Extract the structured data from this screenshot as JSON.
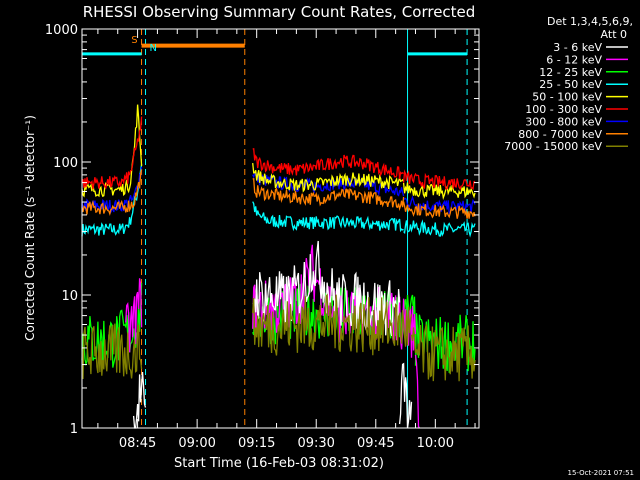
{
  "chart_data": {
    "type": "line",
    "title": "RHESSI Observing Summary Count Rates, Corrected",
    "xlabel": "Start Time (16-Feb-03 08:31:02)",
    "ylabel": "Corrected Count Rate (s⁻¹ detector⁻¹)",
    "y_scale": "log",
    "ylim": [
      1,
      1000
    ],
    "xlim_minutes": [
      "08:31",
      "10:11"
    ],
    "y_ticks": [
      "1",
      "10",
      "100",
      "1000"
    ],
    "x_ticks": [
      "08:45",
      "09:00",
      "09:15",
      "09:30",
      "09:45",
      "10:00"
    ],
    "detector_info": [
      "Det 1,3,4,5,6,9,",
      "Att 0"
    ],
    "footer_date": "15-Oct-2021 07:51",
    "markers": {
      "S_label": "S",
      "N_label": "N",
      "saa_bar": {
        "start": "08:46",
        "end": "09:12",
        "level": 750
      },
      "night_lines": [
        "08:47",
        "09:53",
        "10:08"
      ],
      "saa_lines": [
        "08:46",
        "09:12"
      ],
      "night_bar_levels": 650
    },
    "series": [
      {
        "name": "3 - 6 keV",
        "color": "#ffffff",
        "segments": [
          {
            "x": [
              "08:44",
              "08:45",
              "08:46",
              "08:47"
            ],
            "y": [
              1.0,
              1.5,
              2.0,
              1.0
            ]
          },
          {
            "x": [
              "09:14",
              "09:18",
              "09:22",
              "09:26",
              "09:28",
              "09:29",
              "09:31",
              "09:33",
              "09:36",
              "09:42",
              "09:48",
              "09:51"
            ],
            "y": [
              10,
              10,
              9,
              11,
              14,
              18,
              15,
              11,
              9,
              9,
              8,
              8
            ]
          },
          {
            "x": [
              "09:51",
              "09:52",
              "09:53",
              "09:54"
            ],
            "y": [
              1.0,
              2.5,
              1.3,
              1.0
            ]
          }
        ]
      },
      {
        "name": "6 - 12 keV",
        "color": "#ff00ff",
        "segments": [
          {
            "x": [
              "08:42",
              "08:44",
              "08:45",
              "08:46"
            ],
            "y": [
              5,
              6,
              8,
              9
            ]
          },
          {
            "x": [
              "09:14",
              "09:18",
              "09:22",
              "09:26",
              "09:28",
              "09:29",
              "09:31",
              "09:33",
              "09:36",
              "09:42",
              "09:48",
              "09:53",
              "09:55"
            ],
            "y": [
              8,
              8,
              8,
              10,
              13,
              15,
              12,
              9,
              7,
              7,
              7,
              6,
              5
            ]
          },
          {
            "x": [
              "09:55",
              "09:56"
            ],
            "y": [
              5,
              1.0
            ]
          }
        ]
      },
      {
        "name": "12 - 25 keV",
        "color": "#00ff00",
        "segments": [
          {
            "x": [
              "08:31",
              "08:36",
              "08:40",
              "08:44",
              "08:46"
            ],
            "y": [
              4.5,
              4.5,
              4.6,
              5.5,
              8.5
            ]
          },
          {
            "x": [
              "09:14",
              "09:20",
              "09:26",
              "09:32",
              "09:38",
              "09:44",
              "09:50",
              "09:55"
            ],
            "y": [
              7,
              7,
              7.5,
              7.5,
              7,
              7,
              7,
              6.5
            ]
          },
          {
            "x": [
              "09:55",
              "10:00",
              "10:05",
              "10:10"
            ],
            "y": [
              4.5,
              4.3,
              4.3,
              4.3
            ]
          }
        ]
      },
      {
        "name": "25 - 50 keV",
        "color": "#00ffff",
        "segments": [
          {
            "x": [
              "08:31",
              "08:36",
              "08:41",
              "08:43",
              "08:45",
              "08:46"
            ],
            "y": [
              31,
              31,
              31,
              35,
              60,
              100
            ]
          },
          {
            "x": [
              "09:14",
              "09:15",
              "09:18",
              "09:25",
              "09:35",
              "09:45",
              "09:52"
            ],
            "y": [
              50,
              40,
              36,
              35,
              35,
              34,
              34
            ]
          },
          {
            "x": [
              "09:52",
              "09:56",
              "10:02",
              "10:10"
            ],
            "y": [
              33,
              32,
              31,
              31
            ]
          }
        ]
      },
      {
        "name": "50 - 100 keV",
        "color": "#ffff00",
        "segments": [
          {
            "x": [
              "08:31",
              "08:36",
              "08:41",
              "08:43",
              "08:44",
              "08:45",
              "08:46"
            ],
            "y": [
              62,
              62,
              62,
              68,
              110,
              250,
              100
            ]
          },
          {
            "x": [
              "09:14",
              "09:15",
              "09:18",
              "09:25",
              "09:30",
              "09:38",
              "09:45",
              "09:52"
            ],
            "y": [
              95,
              80,
              72,
              67,
              68,
              75,
              72,
              68
            ]
          },
          {
            "x": [
              "09:52",
              "09:56",
              "10:02",
              "10:10"
            ],
            "y": [
              64,
              61,
              60,
              60
            ]
          }
        ]
      },
      {
        "name": "100 - 300 keV",
        "color": "#ff0000",
        "segments": [
          {
            "x": [
              "08:31",
              "08:36",
              "08:41",
              "08:43",
              "08:45",
              "08:46"
            ],
            "y": [
              70,
              70,
              70,
              78,
              140,
              200
            ]
          },
          {
            "x": [
              "09:14",
              "09:15",
              "09:20",
              "09:25",
              "09:30",
              "09:36",
              "09:42",
              "09:47",
              "09:52"
            ],
            "y": [
              120,
              100,
              90,
              87,
              92,
              102,
              98,
              88,
              80
            ]
          },
          {
            "x": [
              "09:52",
              "09:56",
              "10:02",
              "10:10"
            ],
            "y": [
              77,
              72,
              70,
              70
            ]
          }
        ]
      },
      {
        "name": "300 - 800 keV",
        "color": "#0000ff",
        "segments": [
          {
            "x": [
              "08:31",
              "08:36",
              "08:41",
              "08:44",
              "08:46"
            ],
            "y": [
              47,
              47,
              47,
              52,
              90
            ]
          },
          {
            "x": [
              "09:14",
              "09:15",
              "09:20",
              "09:25",
              "09:30",
              "09:36",
              "09:42",
              "09:47",
              "09:52"
            ],
            "y": [
              85,
              75,
              70,
              67,
              66,
              70,
              68,
              63,
              58
            ]
          },
          {
            "x": [
              "09:52",
              "09:56",
              "10:02",
              "10:10"
            ],
            "y": [
              52,
              48,
              46,
              46
            ]
          }
        ]
      },
      {
        "name": "800 - 7000 keV",
        "color": "#ff8000",
        "segments": [
          {
            "x": [
              "08:31",
              "08:36",
              "08:41",
              "08:44",
              "08:46"
            ],
            "y": [
              45,
              45,
              45,
              49,
              80
            ]
          },
          {
            "x": [
              "09:14",
              "09:15",
              "09:20",
              "09:25",
              "09:30",
              "09:36",
              "09:42",
              "09:47",
              "09:52"
            ],
            "y": [
              70,
              60,
              56,
              54,
              53,
              57,
              55,
              52,
              49
            ]
          },
          {
            "x": [
              "09:52",
              "09:56",
              "10:02",
              "10:10"
            ],
            "y": [
              46,
              44,
              42,
              42
            ]
          }
        ]
      },
      {
        "name": "7000 - 15000 keV",
        "color": "#808000",
        "segments": [
          {
            "x": [
              "08:31",
              "08:36",
              "08:41",
              "08:45",
              "08:46"
            ],
            "y": [
              3.7,
              3.7,
              3.7,
              3.8,
              4.5
            ]
          },
          {
            "x": [
              "09:14",
              "09:20",
              "09:26",
              "09:32",
              "09:38",
              "09:44",
              "09:50",
              "09:54"
            ],
            "y": [
              5.8,
              5.8,
              6,
              6.2,
              6,
              5.8,
              5.8,
              5.6
            ]
          },
          {
            "x": [
              "09:54",
              "10:00",
              "10:05",
              "10:10"
            ],
            "y": [
              3.7,
              3.6,
              3.6,
              3.6
            ]
          }
        ]
      }
    ]
  }
}
